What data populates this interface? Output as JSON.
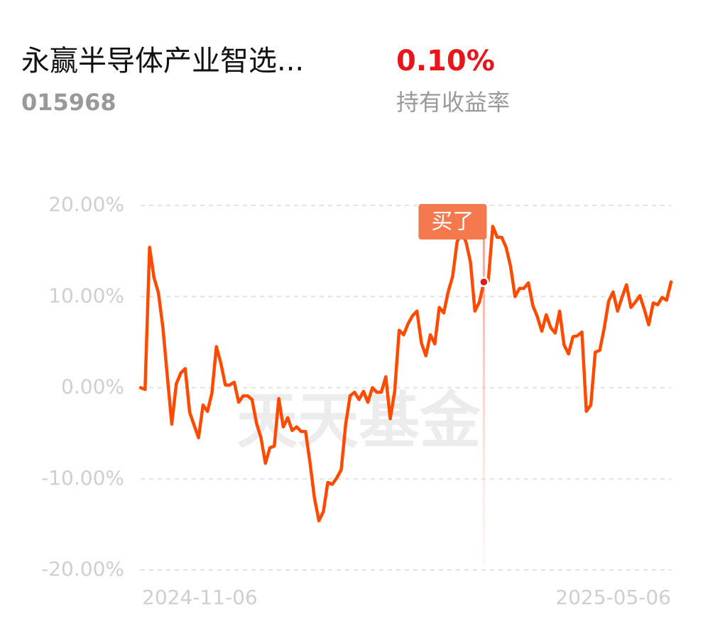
{
  "header": {
    "title": "永赢半导体产业智选...",
    "code": "015968",
    "return_value": "0.10%",
    "return_label": "持有收益率"
  },
  "chart_data": {
    "type": "line",
    "watermark": "天天基金",
    "categories": [
      "2024-11-06",
      null,
      null,
      null,
      null,
      null,
      null,
      null,
      null,
      null,
      null,
      null,
      null,
      null,
      null,
      null,
      null,
      null,
      null,
      null,
      null,
      null,
      null,
      null,
      null,
      null,
      null,
      null,
      null,
      null,
      null,
      null,
      null,
      null,
      null,
      null,
      null,
      null,
      null,
      null,
      null,
      null,
      null,
      null,
      null,
      null,
      null,
      null,
      null,
      null,
      null,
      null,
      null,
      null,
      null,
      null,
      null,
      null,
      null,
      null,
      null,
      null,
      null,
      null,
      null,
      null,
      null,
      null,
      null,
      null,
      null,
      null,
      null,
      null,
      null,
      null,
      null,
      null,
      null,
      null,
      null,
      null,
      null,
      null,
      null,
      null,
      null,
      null,
      null,
      null,
      null,
      null,
      null,
      null,
      null,
      null,
      null,
      null,
      null,
      null,
      null,
      null,
      null,
      null,
      null,
      null,
      null,
      null,
      null,
      null,
      null,
      null,
      null,
      null,
      null,
      null,
      null,
      null,
      null,
      "2025-05-06"
    ],
    "series": [
      {
        "color": "#ff4a00",
        "values": [
          0,
          -0.2,
          15.4,
          12.1,
          10.4,
          6.6,
          1.2,
          -4.0,
          0.4,
          1.6,
          2.1,
          -2.7,
          -4.1,
          -5.5,
          -1.9,
          -2.6,
          -0.6,
          4.5,
          2.7,
          0.3,
          0.3,
          0.6,
          -1.6,
          -0.9,
          -0.9,
          -1.3,
          -3.9,
          -5.5,
          -8.3,
          -6.6,
          -6.4,
          -1.2,
          -4.3,
          -3.3,
          -4.7,
          -4.3,
          -4.8,
          -4.8,
          -8.2,
          -12.1,
          -14.6,
          -13.6,
          -10.4,
          -10.6,
          -9.9,
          -9.0,
          -4.0,
          -0.9,
          -0.5,
          -1.3,
          -0.4,
          -1.6,
          0,
          -0.5,
          -0.5,
          1.2,
          -3.4,
          -0.4,
          6.3,
          5.8,
          7.0,
          7.9,
          8.4,
          4.9,
          3.5,
          5.8,
          4.8,
          8.8,
          8.2,
          10.5,
          12.2,
          16.0,
          17.1,
          16.0,
          13.8,
          8.4,
          9.4,
          11.6,
          11.7,
          17.7,
          16.5,
          16.5,
          15.4,
          13.3,
          10.0,
          10.9,
          10.9,
          11.5,
          9.0,
          7.8,
          6.2,
          8.0,
          6.6,
          6.0,
          8.4,
          4.7,
          3.7,
          5.6,
          5.7,
          6.1,
          -2.6,
          -1.9,
          3.9,
          4.1,
          6.5,
          9.5,
          10.5,
          8.4,
          9.9,
          11.3,
          8.8,
          9.4,
          10.1,
          8.6,
          6.9,
          9.3,
          9.1,
          9.9,
          9.6,
          11.6
        ]
      }
    ],
    "annotation": {
      "text": "买了",
      "index": 77
    },
    "ylim": [
      -20,
      20
    ],
    "yticks": [
      {
        "value": -20,
        "label": "-20.00%"
      },
      {
        "value": -10,
        "label": "-10.00%"
      },
      {
        "value": 0,
        "label": "0.00%"
      },
      {
        "value": 10,
        "label": "10.00%"
      },
      {
        "value": 20,
        "label": "20.00%"
      }
    ],
    "grid": true
  }
}
